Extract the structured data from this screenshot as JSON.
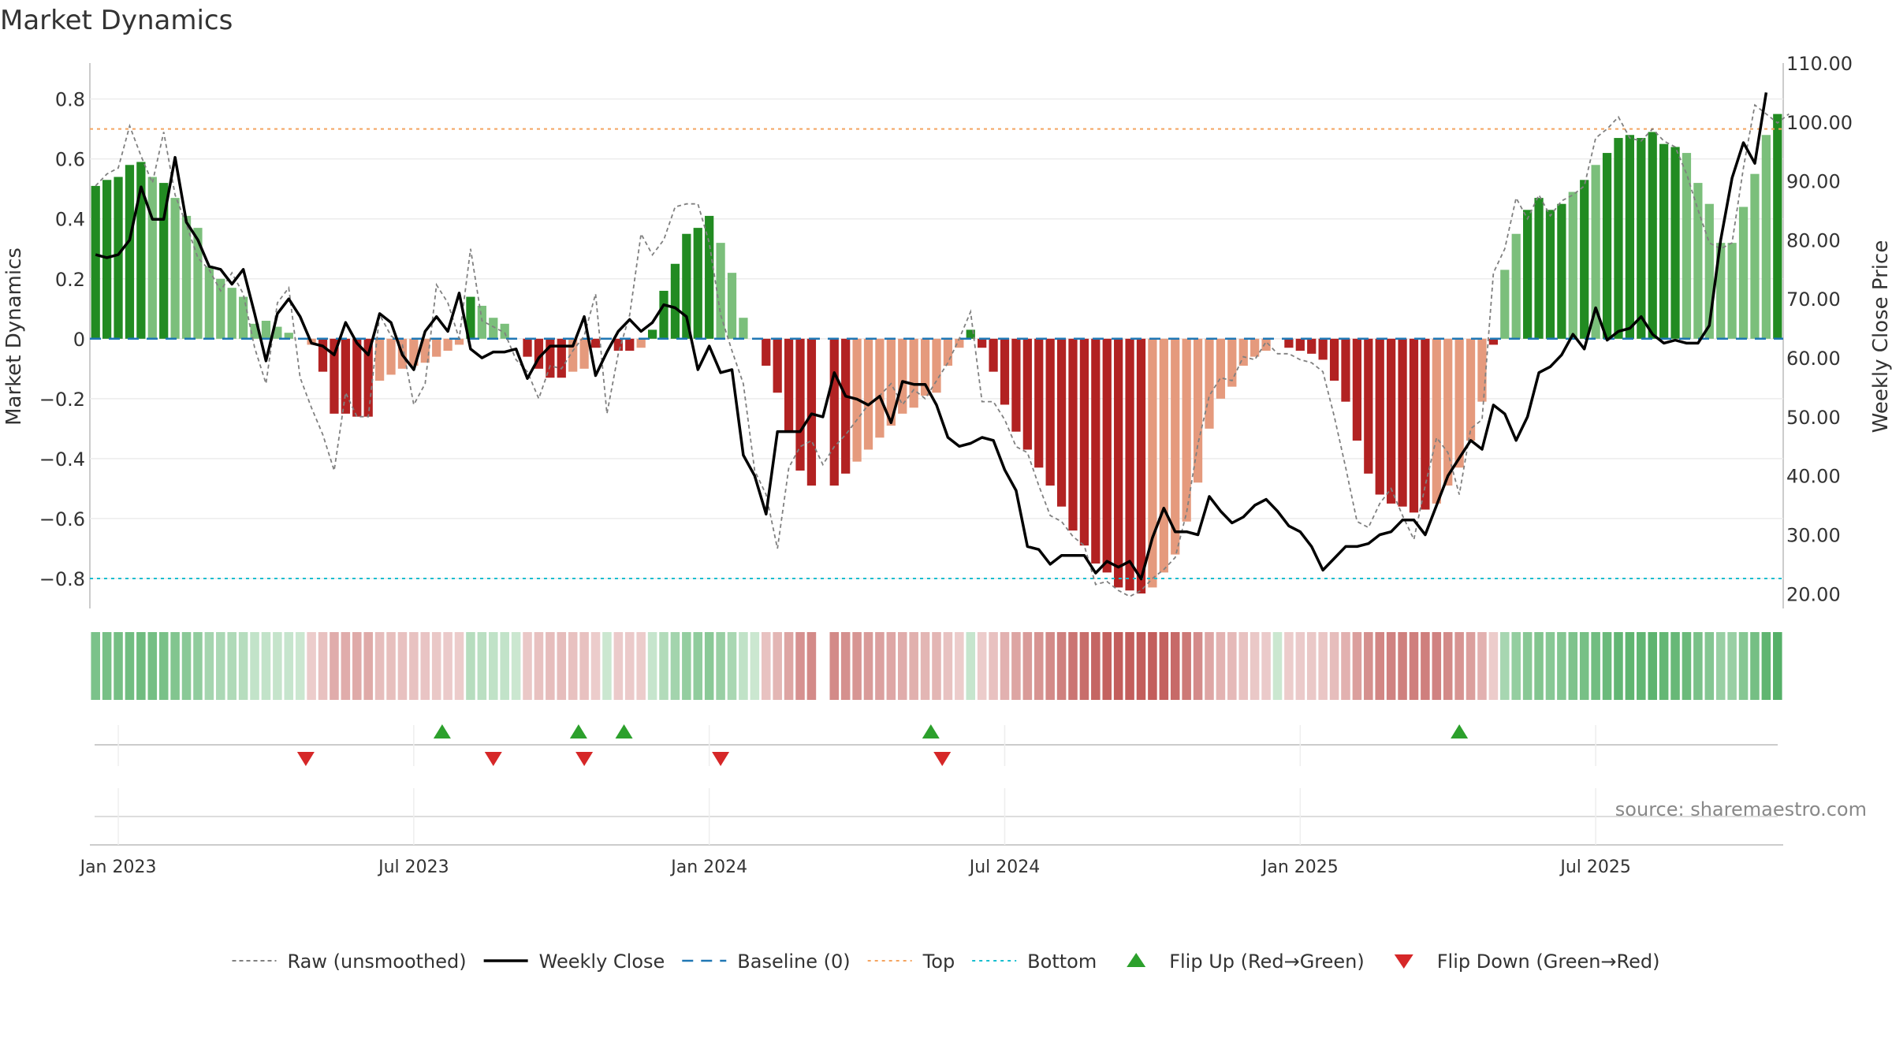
{
  "chart_data": {
    "type": "bar",
    "title": "Market Dynamics",
    "ylabel": "Market Dynamics",
    "y2label": "Weekly Close Price",
    "source": "source: sharemaestro.com",
    "ylim": [
      -0.9,
      0.92
    ],
    "y2lim": [
      17.5,
      110
    ],
    "yticks": [
      "0.8",
      "0.6",
      "0.4",
      "0.2",
      "0",
      "−0.2",
      "−0.4",
      "−0.6",
      "−0.8"
    ],
    "y2ticks": [
      "110.00",
      "100.00",
      "90.00",
      "80.00",
      "70.00",
      "60.00",
      "50.00",
      "40.00",
      "30.00",
      "20.00"
    ],
    "xticks": [
      "Jan 2023",
      "Jul 2023",
      "Jan 2024",
      "Jul 2024",
      "Jan 2025",
      "Jul 2025"
    ],
    "xtick_weeks": [
      0,
      26,
      52,
      78,
      104,
      130
    ],
    "reference_lines": {
      "baseline": 0,
      "top": 0.7,
      "bottom": -0.8
    },
    "grid": true,
    "legend_position": "bottom-center",
    "colors": {
      "bull_strong": "#228b22",
      "bull_weak": "#7bbf7b",
      "bear_strong": "#b22222",
      "bear_weak": "#e59a7d",
      "raw": "#808080",
      "close": "#000000",
      "baseline": "#1f77b4",
      "top": "#f4a460",
      "bottom": "#17becf",
      "flip_up": "#2ca02c",
      "flip_down": "#d62728"
    },
    "legend": [
      {
        "label": "Raw (unsmoothed)",
        "key": "raw"
      },
      {
        "label": "Weekly Close",
        "key": "close"
      },
      {
        "label": "Baseline (0)",
        "key": "baseline"
      },
      {
        "label": "Top",
        "key": "top"
      },
      {
        "label": "Bottom",
        "key": "bottom"
      },
      {
        "label": "Flip Up (Red→Green)",
        "key": "flip_up"
      },
      {
        "label": "Flip Down (Green→Red)",
        "key": "flip_down"
      }
    ],
    "start_week": -2,
    "bars": [
      0.51,
      0.53,
      0.54,
      0.58,
      0.59,
      0.54,
      0.52,
      0.47,
      0.41,
      0.37,
      0.24,
      0.2,
      0.17,
      0.14,
      0.05,
      0.06,
      0.04,
      0.02,
      0,
      -0.02,
      -0.11,
      -0.25,
      -0.25,
      -0.26,
      -0.26,
      -0.14,
      -0.12,
      -0.1,
      -0.09,
      -0.08,
      -0.06,
      -0.04,
      -0.02,
      0.14,
      0.11,
      0.07,
      0.05,
      0,
      -0.06,
      -0.1,
      -0.13,
      -0.13,
      -0.11,
      -0.1,
      -0.03,
      0,
      -0.04,
      -0.04,
      -0.03,
      0.03,
      0.16,
      0.25,
      0.35,
      0.37,
      0.41,
      0.32,
      0.22,
      0.07,
      0,
      -0.09,
      -0.18,
      -0.31,
      -0.44,
      -0.49,
      null,
      -0.49,
      -0.45,
      -0.41,
      -0.37,
      -0.33,
      -0.29,
      -0.25,
      -0.23,
      -0.19,
      -0.18,
      -0.09,
      -0.03,
      0.03,
      -0.03,
      -0.11,
      -0.22,
      -0.31,
      -0.37,
      -0.43,
      -0.49,
      -0.56,
      -0.64,
      -0.69,
      -0.75,
      -0.78,
      -0.83,
      -0.84,
      -0.85,
      -0.83,
      -0.78,
      -0.72,
      -0.61,
      -0.48,
      -0.3,
      -0.2,
      -0.16,
      -0.09,
      -0.06,
      -0.04,
      0,
      -0.03,
      -0.04,
      -0.05,
      -0.07,
      -0.14,
      -0.21,
      -0.34,
      -0.45,
      -0.52,
      -0.55,
      -0.56,
      -0.58,
      -0.57,
      -0.55,
      -0.49,
      -0.43,
      -0.34,
      -0.21,
      -0.02,
      0.23,
      0.35,
      0.43,
      0.47,
      0.43,
      0.45,
      0.49,
      0.53,
      0.58,
      0.62,
      0.67,
      0.68,
      0.67,
      0.69,
      0.65,
      0.64,
      0.62,
      0.52,
      0.45,
      0.32,
      0.32,
      0.44,
      0.55,
      0.68,
      0.75
    ],
    "bar_strength": [
      "s",
      "s",
      "s",
      "s",
      "s",
      "w",
      "s",
      "w",
      "w",
      "w",
      "w",
      "w",
      "w",
      "w",
      "w",
      "w",
      "w",
      "w",
      "w",
      "w",
      "s",
      "s",
      "s",
      "s",
      "s",
      "w",
      "w",
      "w",
      "w",
      "w",
      "w",
      "w",
      "w",
      "s",
      "w",
      "w",
      "w",
      "w",
      "s",
      "s",
      "s",
      "s",
      "w",
      "w",
      "s",
      "w",
      "s",
      "s",
      "w",
      "s",
      "s",
      "s",
      "s",
      "s",
      "s",
      "w",
      "w",
      "w",
      "w",
      "s",
      "s",
      "s",
      "s",
      "s",
      "s",
      "s",
      "s",
      "w",
      "w",
      "w",
      "w",
      "w",
      "w",
      "w",
      "w",
      "w",
      "w",
      "s",
      "s",
      "s",
      "s",
      "s",
      "s",
      "s",
      "s",
      "s",
      "s",
      "s",
      "s",
      "s",
      "s",
      "s",
      "s",
      "w",
      "w",
      "w",
      "w",
      "w",
      "w",
      "w",
      "w",
      "w",
      "w",
      "w",
      "w",
      "s",
      "s",
      "s",
      "s",
      "s",
      "s",
      "s",
      "s",
      "s",
      "s",
      "s",
      "s",
      "s",
      "w",
      "w",
      "w",
      "w",
      "w",
      "s",
      "w",
      "w",
      "s",
      "s",
      "s",
      "s",
      "w",
      "s",
      "w",
      "s",
      "s",
      "s",
      "s",
      "s",
      "s",
      "s",
      "w",
      "w",
      "w",
      "w",
      "w",
      "w",
      "w",
      "w",
      "s",
      "w",
      "s",
      "s",
      "s"
    ],
    "raw": [
      0.51,
      0.55,
      0.57,
      0.71,
      0.61,
      0.52,
      0.69,
      0.48,
      0.38,
      0.27,
      0.23,
      0.16,
      0.22,
      0.15,
      -0.03,
      -0.15,
      0.12,
      0.17,
      -0.13,
      -0.23,
      -0.32,
      -0.44,
      -0.18,
      -0.26,
      -0.26,
      0.08,
      0.01,
      -0.02,
      -0.22,
      -0.15,
      0.18,
      0.12,
      0,
      0.3,
      0.06,
      0.04,
      0.02,
      -0.07,
      -0.11,
      -0.2,
      -0.09,
      -0.1,
      -0.04,
      0.01,
      0.15,
      -0.25,
      -0.05,
      0.08,
      0.35,
      0.28,
      0.33,
      0.44,
      0.45,
      0.45,
      0.32,
      0.08,
      -0.04,
      -0.15,
      -0.44,
      -0.52,
      -0.7,
      -0.43,
      -0.36,
      -0.34,
      -0.42,
      -0.36,
      -0.32,
      -0.27,
      -0.22,
      -0.19,
      -0.15,
      -0.22,
      -0.17,
      -0.2,
      -0.14,
      -0.08,
      0,
      0.09,
      -0.21,
      -0.21,
      -0.27,
      -0.36,
      -0.38,
      -0.49,
      -0.59,
      -0.61,
      -0.66,
      -0.69,
      -0.82,
      -0.81,
      -0.84,
      -0.86,
      -0.84,
      -0.8,
      -0.77,
      -0.73,
      -0.58,
      -0.35,
      -0.19,
      -0.13,
      -0.14,
      -0.06,
      -0.07,
      -0.01,
      -0.05,
      -0.05,
      -0.07,
      -0.08,
      -0.11,
      -0.26,
      -0.43,
      -0.61,
      -0.63,
      -0.55,
      -0.5,
      -0.59,
      -0.67,
      -0.49,
      -0.33,
      -0.38,
      -0.52,
      -0.3,
      -0.27,
      0.22,
      0.3,
      0.47,
      0.4,
      0.48,
      0.41,
      0.46,
      0.48,
      0.51,
      0.67,
      0.7,
      0.74,
      0.67,
      0.66,
      0.7,
      0.66,
      0.64,
      0.55,
      0.43,
      0.32,
      0.3,
      0.32,
      0.57,
      0.78,
      0.75,
      0.72,
      0.75
    ],
    "close": [
      77.5,
      77,
      77.5,
      80,
      89,
      83.5,
      83.5,
      94,
      83,
      80,
      75.5,
      75,
      72.5,
      75,
      67.5,
      59.5,
      67.5,
      70,
      67,
      62.5,
      62,
      60.5,
      66,
      62.5,
      60.5,
      67.5,
      66,
      60.5,
      58,
      64.5,
      67,
      64.5,
      71,
      61.5,
      60,
      61,
      61,
      61.5,
      56.5,
      60,
      62,
      62,
      62,
      67,
      57,
      61,
      64.5,
      66.5,
      64.5,
      66,
      69,
      68.5,
      67,
      58,
      62,
      57.5,
      58,
      43.5,
      40,
      33.5,
      47.5,
      47.5,
      47.5,
      50.5,
      50,
      57.5,
      53.5,
      53,
      52,
      53.5,
      49,
      56,
      55.5,
      55.5,
      52,
      46.5,
      45,
      45.5,
      46.5,
      46,
      41,
      37.5,
      28,
      27.5,
      25,
      26.5,
      26.5,
      26.5,
      23.5,
      25.5,
      24.5,
      25.5,
      22.5,
      29.5,
      34.5,
      30.5,
      30.5,
      30,
      36.5,
      34,
      32,
      33,
      35,
      36,
      34,
      31.5,
      30.5,
      28,
      24,
      26,
      28,
      28,
      28.5,
      30,
      30.5,
      32.5,
      32.5,
      30,
      35,
      40,
      43,
      46,
      44.5,
      52,
      50.5,
      46,
      50,
      57.5,
      58.5,
      60.5,
      64,
      61.5,
      68.5,
      63,
      64.5,
      65,
      67,
      64,
      62.5,
      63,
      62.5,
      62.5,
      65.5,
      80,
      90.5,
      96.5,
      93,
      105
    ],
    "flip_up_weeks": [
      28.5,
      40.5,
      44.5,
      71.5,
      118
    ],
    "flip_down_weeks": [
      16.5,
      33,
      41,
      53,
      72.5
    ]
  }
}
